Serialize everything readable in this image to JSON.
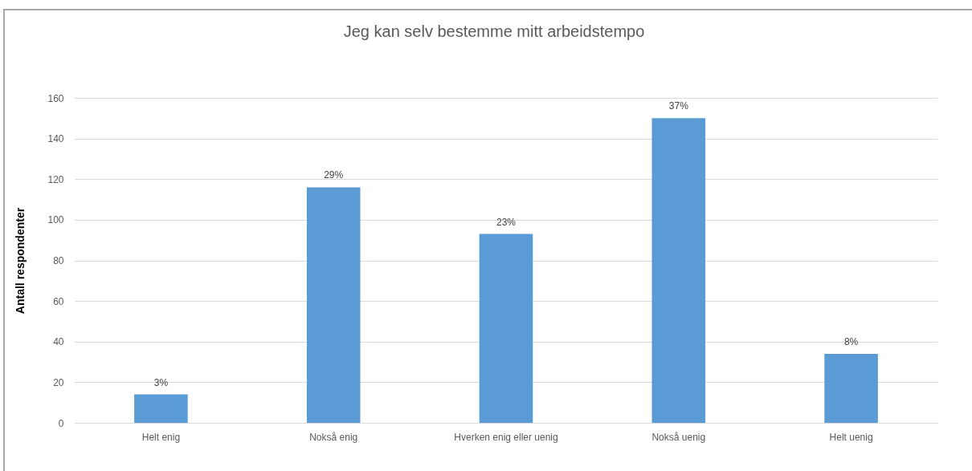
{
  "chart_data": {
    "type": "bar",
    "title": "Jeg kan selv bestemme mitt arbeidstempo",
    "ylabel": "Antall respondenter",
    "categories": [
      "Helt enig",
      "Nokså enig",
      "Hverken enig eller uenig",
      "Nokså uenig",
      "Helt uenig"
    ],
    "values": [
      14,
      116,
      93,
      150,
      34
    ],
    "color": "#5b9bd5",
    "annotations": [
      {
        "text": "3%",
        "x": "Helt enig",
        "y": 14
      },
      {
        "text": "29%",
        "x": "Nokså enig",
        "y": 116
      },
      {
        "text": "23%",
        "x": "Hverken enig eller uenig",
        "y": 93
      },
      {
        "text": "37%",
        "x": "Nokså uenig",
        "y": 150
      },
      {
        "text": "8%",
        "x": "Helt uenig",
        "y": 34
      }
    ],
    "ylim": [
      0,
      160
    ],
    "yticks": [
      0,
      20,
      40,
      60,
      80,
      100,
      120,
      140,
      160
    ],
    "grid": "y"
  }
}
